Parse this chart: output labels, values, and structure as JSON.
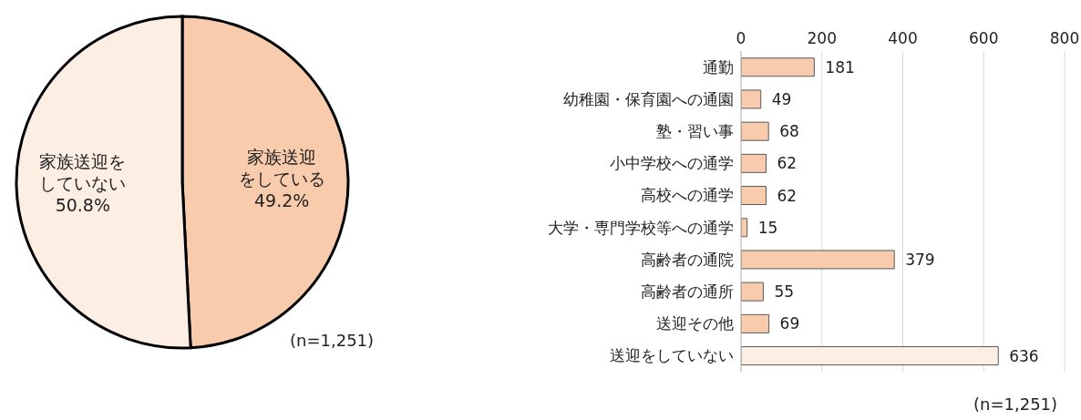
{
  "chart_data": [
    {
      "type": "pie",
      "categories": [
        "家族送迎をしている",
        "家族送迎をしていない"
      ],
      "values": [
        49.2,
        50.8
      ],
      "value_labels": [
        "49.2%",
        "50.8%"
      ],
      "colors": [
        "#f8cbad",
        "#fdeee4"
      ],
      "annotations": [
        "(n=1,251)"
      ]
    },
    {
      "type": "bar",
      "orientation": "horizontal",
      "categories": [
        "通勤",
        "幼稚園・保育園への通園",
        "塾・習い事",
        "小中学校への通学",
        "高校への通学",
        "大学・専門学校等への通学",
        "高齢者の通院",
        "高齢者の通所",
        "送迎その他",
        "送迎をしていない"
      ],
      "values": [
        181,
        49,
        68,
        62,
        62,
        15,
        379,
        55,
        69,
        636
      ],
      "colors": [
        "#f8cbad",
        "#f8cbad",
        "#f8cbad",
        "#f8cbad",
        "#f8cbad",
        "#f8cbad",
        "#f8cbad",
        "#f8cbad",
        "#f8cbad",
        "#fdeee4"
      ],
      "xlim": [
        0,
        800
      ],
      "xticks": [
        0,
        200,
        400,
        600,
        800
      ],
      "grid": "x",
      "data_labels": true,
      "annotations": [
        "(n=1,251)"
      ]
    }
  ]
}
